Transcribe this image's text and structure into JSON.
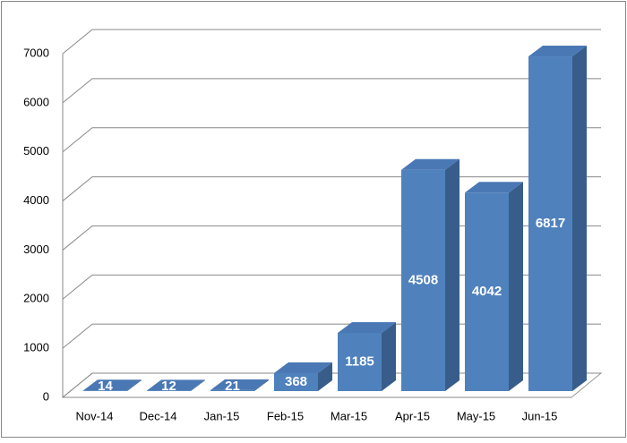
{
  "chart_data": {
    "type": "bar3d",
    "categories": [
      "Nov-14",
      "Dec-14",
      "Jan-15",
      "Feb-15",
      "Mar-15",
      "Apr-15",
      "May-15",
      "Jun-15"
    ],
    "values": [
      14,
      12,
      21,
      368,
      1185,
      4508,
      4042,
      6817
    ],
    "color": "#4f81bd",
    "ylim": [
      0,
      7000
    ],
    "yticks": [
      0,
      1000,
      2000,
      3000,
      4000,
      5000,
      6000,
      7000
    ],
    "grid": true
  }
}
